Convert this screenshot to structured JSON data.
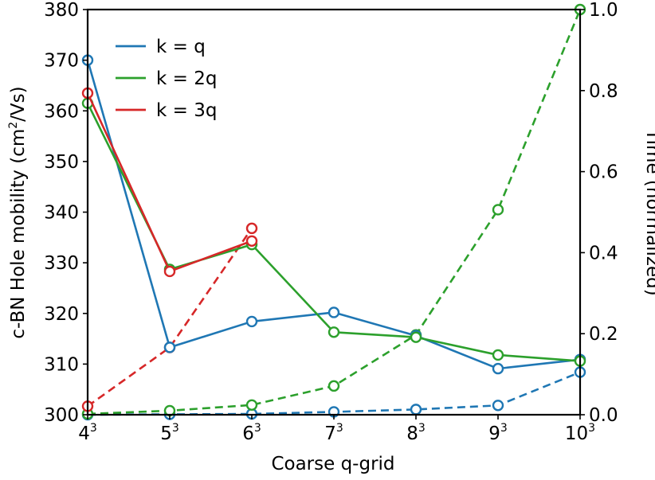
{
  "chart_data": {
    "type": "line",
    "xlabel": "Coarse q-grid",
    "ylabel": "c-BN Hole mobility (cm²/Vs)",
    "ylabel_parts": {
      "pre": "c-BN Hole mobility (cm",
      "sup": "2",
      "post": "/Vs)"
    },
    "y2label": "Time (normalized)",
    "x_ticks": [
      {
        "base": "4",
        "exp": "3"
      },
      {
        "base": "5",
        "exp": "3"
      },
      {
        "base": "6",
        "exp": "3"
      },
      {
        "base": "7",
        "exp": "3"
      },
      {
        "base": "8",
        "exp": "3"
      },
      {
        "base": "9",
        "exp": "3"
      },
      {
        "base": "10",
        "exp": "3"
      }
    ],
    "xlim": [
      4,
      10
    ],
    "ylim": [
      300,
      380
    ],
    "y_ticks": [
      300,
      310,
      320,
      330,
      340,
      350,
      360,
      370,
      380
    ],
    "y2lim": [
      0,
      1
    ],
    "y2_ticks": [
      "0.0",
      "0.2",
      "0.4",
      "0.6",
      "0.8",
      "1.0"
    ],
    "y2_tick_values": [
      0,
      0.2,
      0.4,
      0.6,
      0.8,
      1.0
    ],
    "legend_position": "top-left",
    "mobility_series": [
      {
        "name": "k = q",
        "color": "#1f77b4",
        "x": [
          4,
          5,
          6,
          7,
          8,
          9,
          10
        ],
        "y": [
          370,
          313.3,
          318.4,
          320.2,
          315.6,
          309.1,
          310.9
        ]
      },
      {
        "name": "k = 2q",
        "color": "#2ca02c",
        "x": [
          4,
          5,
          6,
          7,
          8,
          9,
          10
        ],
        "y": [
          361.5,
          328.7,
          333.6,
          316.3,
          315.3,
          311.8,
          310.6
        ]
      },
      {
        "name": "k = 3q",
        "color": "#d62728",
        "x": [
          4,
          5,
          6
        ],
        "y": [
          363.5,
          328.3,
          334.3
        ]
      }
    ],
    "time_series": [
      {
        "name": "k = q (time)",
        "color": "#1f77b4",
        "x": [
          4,
          5,
          6,
          7,
          8,
          9,
          10
        ],
        "y": [
          0.0,
          0.001,
          0.002,
          0.007,
          0.013,
          0.023,
          0.105
        ]
      },
      {
        "name": "k = 2q (time)",
        "color": "#2ca02c",
        "x": [
          4,
          5,
          6,
          7,
          8,
          9,
          10
        ],
        "y": [
          0.002,
          0.01,
          0.024,
          0.071,
          0.197,
          0.506,
          1.0
        ]
      },
      {
        "name": "k = 3q (time)",
        "color": "#d62728",
        "x": [
          4,
          5,
          6
        ],
        "y": [
          0.021,
          0.166,
          0.46
        ]
      }
    ]
  }
}
